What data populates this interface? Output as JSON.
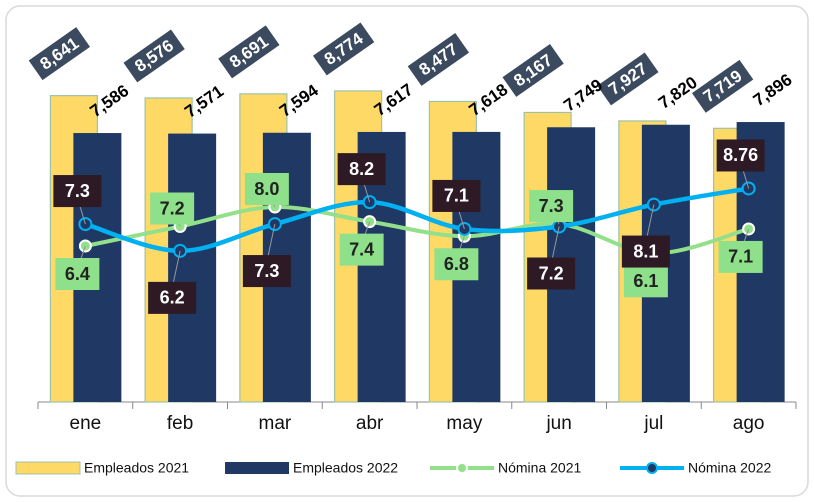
{
  "chart_data": {
    "type": "bar-line",
    "categories": [
      "ene",
      "feb",
      "mar",
      "abr",
      "may",
      "jun",
      "jul",
      "ago"
    ],
    "ylim": [
      0,
      11000
    ],
    "y2lim": [
      0,
      16
    ],
    "legend": "bottom",
    "series": [
      {
        "name": "Empleados 2021",
        "type": "bar",
        "color": "#ffd966",
        "values": [
          8641,
          8576,
          8691,
          8774,
          8477,
          8167,
          7927,
          7719
        ],
        "value_labels": [
          "8,641",
          "8,576",
          "8,691",
          "8,774",
          "8,477",
          "8,167",
          "7,927",
          "7,719"
        ]
      },
      {
        "name": "Empleados 2022",
        "type": "bar",
        "color": "#1f3864",
        "values": [
          7586,
          7571,
          7594,
          7617,
          7618,
          7749,
          7820,
          7896
        ],
        "value_labels": [
          "7,586",
          "7,571",
          "7,594",
          "7,617",
          "7,618",
          "7,749",
          "7,820",
          "7,896"
        ]
      },
      {
        "name": "Nómina 2021",
        "type": "line",
        "axis": "y2",
        "color": "#92e08a",
        "values": [
          6.4,
          7.2,
          8.0,
          7.4,
          6.8,
          7.3,
          6.1,
          7.1
        ],
        "value_labels": [
          "6.4",
          "7.2",
          "8.0",
          "7.4",
          "6.8",
          "7.3",
          "6.1",
          "7.1"
        ]
      },
      {
        "name": "Nómina 2022",
        "type": "line",
        "axis": "y2",
        "color": "#00b0f0",
        "values": [
          7.3,
          6.2,
          7.3,
          8.2,
          7.1,
          7.2,
          8.1,
          8.76
        ],
        "value_labels": [
          "7.3",
          "6.2",
          "7.3",
          "8.2",
          "7.1",
          "7.2",
          "8.1",
          "8.76"
        ]
      }
    ]
  }
}
